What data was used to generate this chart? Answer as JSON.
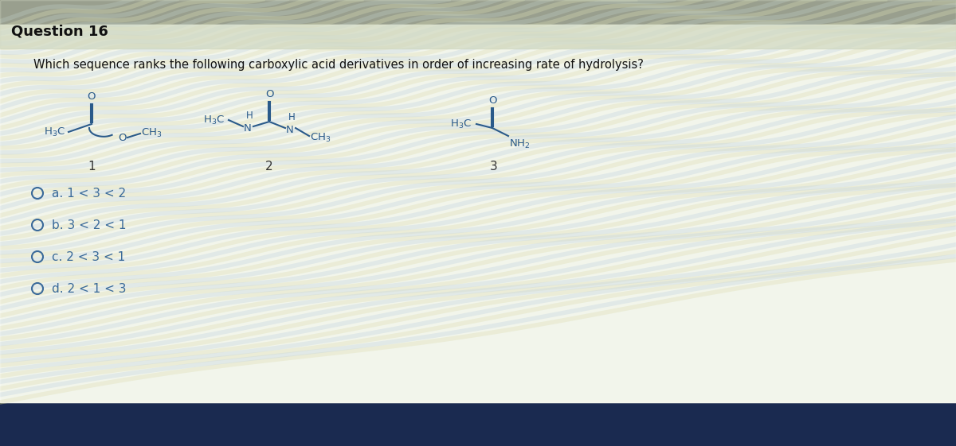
{
  "title": "Question 16",
  "question": "Which sequence ranks the following carboxylic acid derivatives in order of increasing rate of hydrolysis?",
  "bg_main": "#d8dfc8",
  "bg_top_dark": "#1a1a1a",
  "bg_bottom_dark": "#1a2a50",
  "structure_color": "#2a5a8a",
  "text_color": "#1a1a1a",
  "option_color": "#3a6a9a",
  "label_color": "#333333",
  "options": [
    "a. 1 < 3 < 2",
    "b. 3 < 2 < 1",
    "c. 2 < 3 < 1",
    "d. 2 < 1 < 3"
  ],
  "ripple_color_yellow": "#c8c88a",
  "ripple_color_blue": "#a0b8d0",
  "num_ripples": 30
}
